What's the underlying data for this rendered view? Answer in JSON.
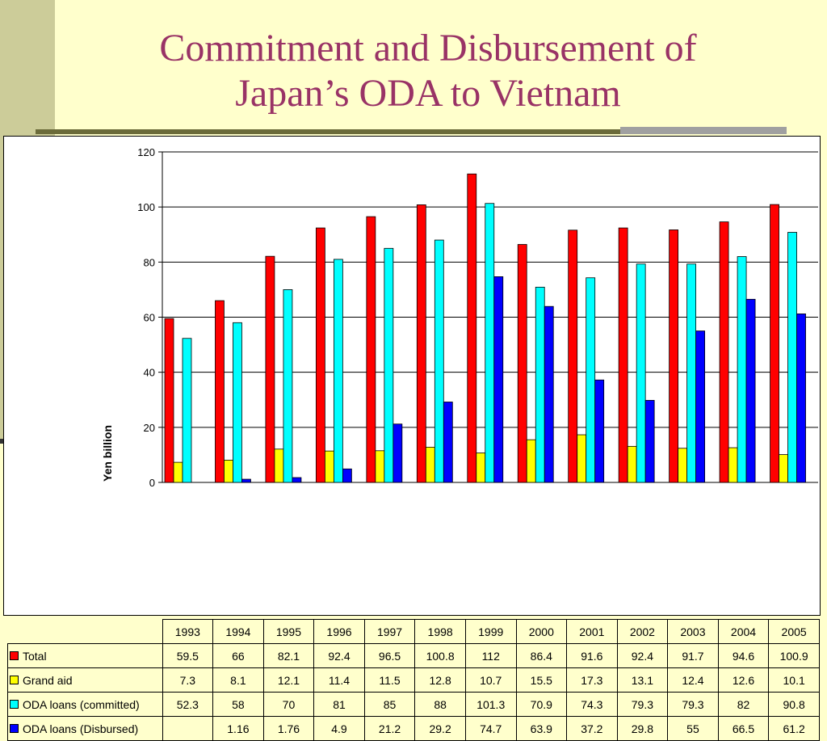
{
  "slide": {
    "title_line1": "Commitment and Disbursement of",
    "title_line2": "Japan’s ODA to Vietnam"
  },
  "chart_data": {
    "type": "bar",
    "title": "",
    "ylabel": "Yen billion",
    "xlabel": "",
    "ylim": [
      0,
      120
    ],
    "yticks": [
      0,
      20,
      40,
      60,
      80,
      100,
      120
    ],
    "grid": true,
    "legend": "data-table",
    "categories": [
      "1993",
      "1994",
      "1995",
      "1996",
      "1997",
      "1998",
      "1999",
      "2000",
      "2001",
      "2002",
      "2003",
      "2004",
      "2005"
    ],
    "series": [
      {
        "name": "Total",
        "color": "#FF0000",
        "values": [
          59.5,
          66,
          82.1,
          92.4,
          96.5,
          100.8,
          112,
          86.4,
          91.6,
          92.4,
          91.7,
          94.6,
          100.9
        ]
      },
      {
        "name": "Grand aid",
        "color": "#FFFF00",
        "values": [
          7.3,
          8.1,
          12.1,
          11.4,
          11.5,
          12.8,
          10.7,
          15.5,
          17.3,
          13.1,
          12.4,
          12.6,
          10.1
        ]
      },
      {
        "name": "ODA loans (committed)",
        "color": "#00FFFF",
        "values": [
          52.3,
          58,
          70,
          81,
          85,
          88,
          101.3,
          70.9,
          74.3,
          79.3,
          79.3,
          82,
          90.8
        ]
      },
      {
        "name": "ODA loans (Disbursed)",
        "color": "#0000FF",
        "values": [
          null,
          1.16,
          1.76,
          4.9,
          21.2,
          29.2,
          74.7,
          63.9,
          37.2,
          29.8,
          55,
          66.5,
          61.2
        ]
      }
    ]
  }
}
